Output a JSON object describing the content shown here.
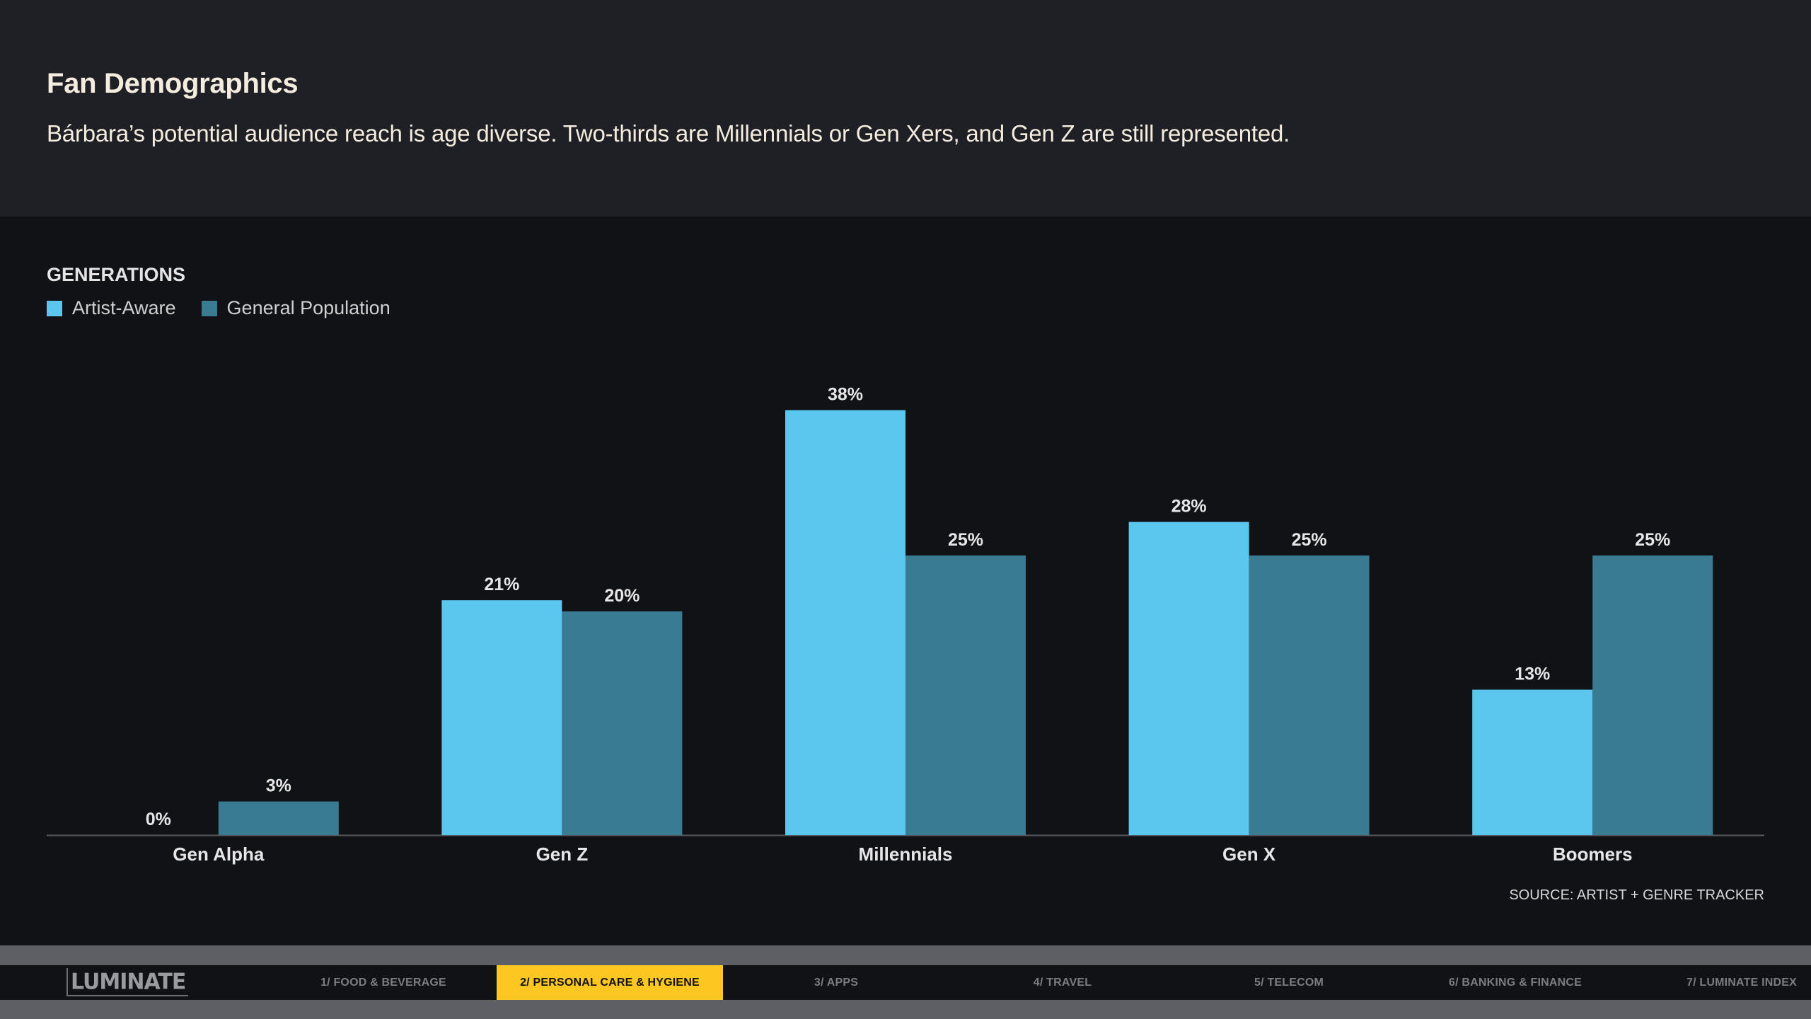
{
  "header": {
    "title": "Fan Demographics",
    "subtitle": "Bárbara’s potential audience reach is age diverse. Two-thirds are Millennials or Gen Xers, and Gen Z are still represented."
  },
  "chart_data": {
    "type": "bar",
    "title": "GENERATIONS",
    "categories": [
      "Gen Alpha",
      "Gen Z",
      "Millennials",
      "Gen X",
      "Boomers"
    ],
    "series": [
      {
        "name": "Artist-Aware",
        "values": [
          0,
          21,
          38,
          28,
          13
        ],
        "color": "#5bc7ee"
      },
      {
        "name": "General Population",
        "values": [
          3,
          20,
          25,
          25,
          25
        ],
        "color": "#3a7b94"
      }
    ],
    "value_suffix": "%",
    "ylim": [
      0,
      40
    ],
    "grid": false,
    "legend_position": "top-left",
    "source": "SOURCE: ARTIST + GENRE TRACKER"
  },
  "footer": {
    "logo_text": "LUMINATE",
    "nav": [
      {
        "label": "1/ FOOD & BEVERAGE",
        "active": false
      },
      {
        "label": "2/ PERSONAL CARE & HYGIENE",
        "active": true
      },
      {
        "label": "3/ APPS",
        "active": false
      },
      {
        "label": "4/ TRAVEL",
        "active": false
      },
      {
        "label": "5/ TELECOM",
        "active": false
      },
      {
        "label": "6/ BANKING & FINANCE",
        "active": false
      },
      {
        "label": "7/ LUMINATE INDEX",
        "active": false
      }
    ],
    "active_color": "#fcc721"
  }
}
